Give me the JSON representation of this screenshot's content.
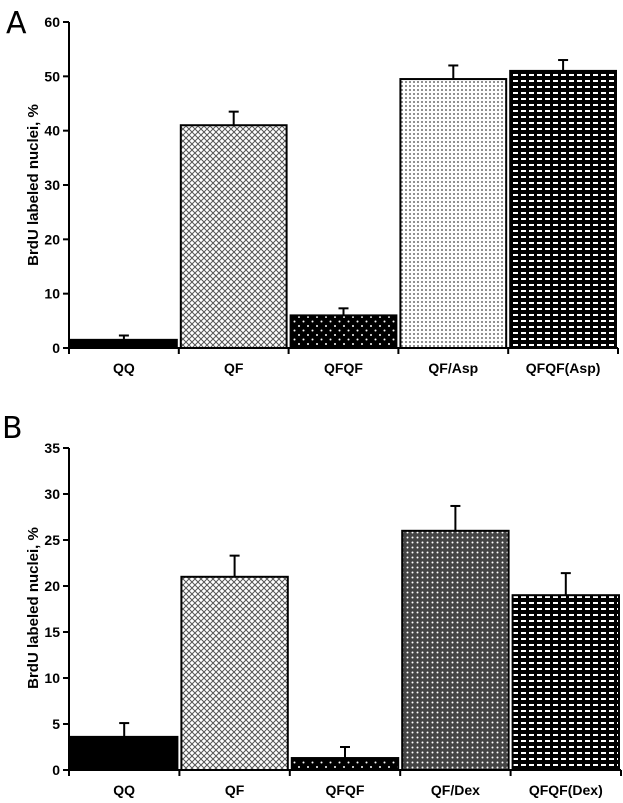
{
  "chart_data": [
    {
      "type": "bar",
      "panel": "A",
      "ylabel": "BrdU labeled nuclei, %",
      "ylim": [
        0,
        60
      ],
      "yticks": [
        0,
        10,
        20,
        30,
        40,
        50,
        60
      ],
      "categories": [
        "QQ",
        "QF",
        "QFQF",
        "QF/Asp",
        "QFQF(Asp)"
      ],
      "values": [
        1.5,
        41,
        6,
        49.5,
        51
      ],
      "errors": [
        0.8,
        2.5,
        1.3,
        2.5,
        2.0
      ],
      "patterns": [
        "solid",
        "crosshatch",
        "dots-dark",
        "dots-light",
        "dash-dark"
      ]
    },
    {
      "type": "bar",
      "panel": "B",
      "ylabel": "BrdU labeled nuclei, %",
      "ylim": [
        0,
        35
      ],
      "yticks": [
        0,
        5,
        10,
        15,
        20,
        25,
        30,
        35
      ],
      "categories": [
        "QQ",
        "QF",
        "QFQF",
        "QF/Dex",
        "QFQF(Dex)"
      ],
      "values": [
        3.6,
        21,
        1.3,
        26,
        19
      ],
      "errors": [
        1.5,
        2.3,
        1.2,
        2.7,
        2.4
      ],
      "patterns": [
        "solid",
        "crosshatch",
        "dots-dark",
        "crosshatch-dark",
        "dash-dark"
      ]
    }
  ]
}
